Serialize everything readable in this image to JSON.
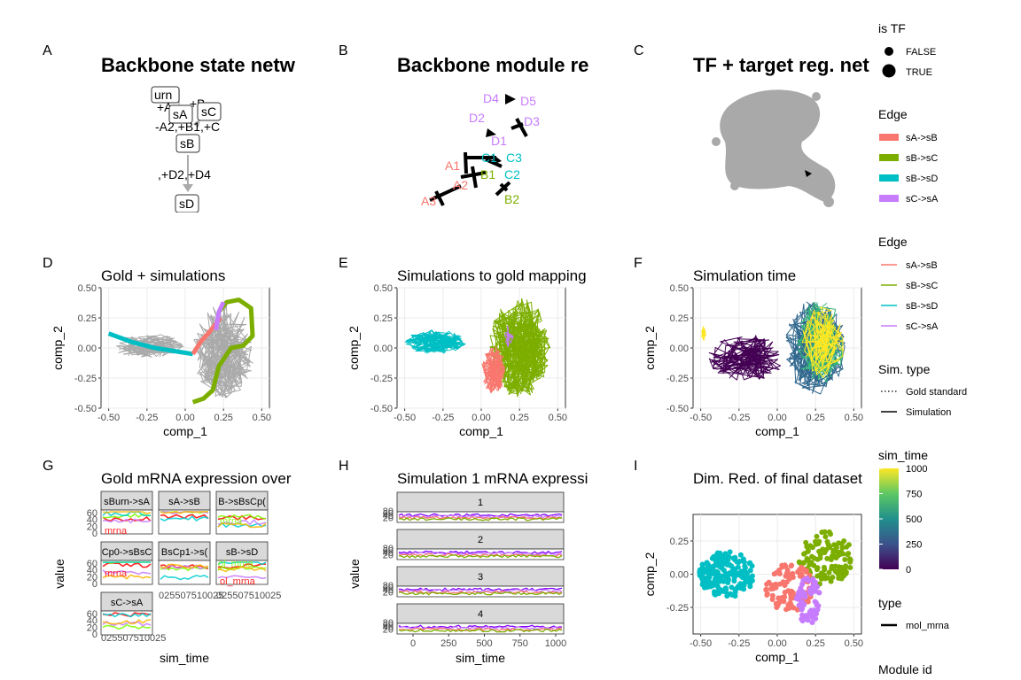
{
  "panels": {
    "A": {
      "tag": "A",
      "title": "Backbone state netw"
    },
    "B": {
      "tag": "B",
      "title": "Backbone module re"
    },
    "C": {
      "tag": "C",
      "title": "TF + target reg. net"
    },
    "D": {
      "tag": "D",
      "title": "Gold + simulations"
    },
    "E": {
      "tag": "E",
      "title": "Simulations to gold mapping"
    },
    "F": {
      "tag": "F",
      "title": "Simulation time"
    },
    "G": {
      "tag": "G",
      "title": "Gold mRNA expression over"
    },
    "H": {
      "tag": "H",
      "title": "Simulation 1 mRNA expressi"
    },
    "I": {
      "tag": "I",
      "title": "Dim. Red. of final dataset"
    }
  },
  "state_network": {
    "nodes": [
      "urn",
      "sA",
      "sC",
      "sB",
      "sD"
    ],
    "edge_labels": [
      "+A",
      "+B",
      "-A2,+B1,+C",
      ",+D2,+D4"
    ]
  },
  "module_network": {
    "nodes": [
      "D4",
      "D5",
      "D2",
      "D3",
      "D1",
      "A1",
      "C1",
      "C3",
      "B1",
      "C2",
      "A2",
      "A3",
      "B2"
    ]
  },
  "facets_G": [
    "sBurn->sA",
    "sA->sB",
    "B->sBsCp(",
    "Cp0->sBsC",
    "BsCp1->s(",
    "sB->sD",
    "sC->sA"
  ],
  "facet_G_labels": [
    "mrna",
    "mrna",
    "mrna",
    "ol_mrna",
    "ol_mrna"
  ],
  "facets_H": [
    "1",
    "2",
    "3",
    "4"
  ],
  "colors": {
    "sA_sB": "#F8766D",
    "sB_sC": "#7CAE00",
    "sB_sD": "#00BFC4",
    "sC_sA": "#C77CFF",
    "gold": "#aaaaaa"
  },
  "legends": {
    "is_tf": {
      "title": "is TF",
      "items": [
        "FALSE",
        "TRUE"
      ]
    },
    "edge_fill": {
      "title": "Edge",
      "items": [
        "sA->sB",
        "sB->sC",
        "sB->sD",
        "sC->sA"
      ]
    },
    "edge_line": {
      "title": "Edge",
      "items": [
        "sA->sB",
        "sB->sC",
        "sB->sD",
        "sC->sA"
      ]
    },
    "sim_type": {
      "title": "Sim. type",
      "items": [
        "Gold standard",
        "Simulation"
      ]
    },
    "sim_time": {
      "title": "sim_time",
      "ticks": [
        "1000",
        "750",
        "500",
        "250",
        "0"
      ],
      "range": [
        0,
        1000
      ]
    },
    "type": {
      "title": "type",
      "items": [
        "mol_mrna"
      ]
    },
    "module_id": {
      "title": "Module id"
    }
  },
  "chart_data": [
    {
      "id": "D",
      "type": "line",
      "title": "Gold + simulations",
      "xlabel": "comp_1",
      "ylabel": "comp_2",
      "xlim": [
        -0.55,
        0.55
      ],
      "ylim": [
        -0.5,
        0.5
      ],
      "xticks": [
        "-0.50",
        "-0.25",
        "0.00",
        "0.25",
        "0.50"
      ],
      "yticks": [
        "0.50",
        "0.25",
        "0.00",
        "-0.25",
        "-0.50"
      ],
      "series": [
        {
          "name": "sB->sD",
          "x": [
            -0.5,
            -0.35,
            -0.2,
            -0.05,
            0.05
          ],
          "y": [
            0.12,
            0.05,
            0.0,
            -0.03,
            -0.05
          ]
        },
        {
          "name": "sA->sB",
          "x": [
            0.05,
            0.1,
            0.15,
            0.2,
            0.23
          ],
          "y": [
            -0.05,
            0.05,
            0.12,
            0.2,
            0.25
          ]
        },
        {
          "name": "sB->sC",
          "x": [
            0.22,
            0.27,
            0.35,
            0.43,
            0.44,
            0.38,
            0.3,
            0.22,
            0.18,
            0.12,
            0.05
          ],
          "y": [
            0.3,
            0.38,
            0.4,
            0.33,
            0.1,
            0.02,
            0.0,
            -0.15,
            -0.35,
            -0.42,
            -0.45
          ]
        },
        {
          "name": "sC->sA",
          "x": [
            0.2,
            0.22,
            0.25
          ],
          "y": [
            0.15,
            0.3,
            0.38
          ]
        }
      ]
    },
    {
      "id": "E",
      "type": "line",
      "title": "Simulations to gold mapping",
      "xlabel": "comp_1",
      "ylabel": "comp_2",
      "xlim": [
        -0.55,
        0.55
      ],
      "ylim": [
        -0.5,
        0.5
      ],
      "xticks": [
        "-0.50",
        "-0.25",
        "0.00",
        "0.25",
        "0.50"
      ],
      "yticks": [
        "0.50",
        "0.25",
        "0.00",
        "-0.25",
        "-0.50"
      ]
    },
    {
      "id": "F",
      "type": "line",
      "title": "Simulation time",
      "xlabel": "comp_1",
      "ylabel": "comp_2",
      "xlim": [
        -0.55,
        0.55
      ],
      "ylim": [
        -0.5,
        0.5
      ],
      "xticks": [
        "-0.50",
        "-0.25",
        "0.00",
        "0.25",
        "0.50"
      ],
      "yticks": [
        "0.50",
        "0.25",
        "0.00",
        "-0.25",
        "-0.50"
      ]
    },
    {
      "id": "G",
      "type": "line",
      "title": "Gold mRNA expression over",
      "xlabel": "sim_time",
      "ylabel": "value",
      "yticks": [
        "60",
        "40",
        "20",
        "0"
      ],
      "xticks": [
        "025",
        "50",
        "75",
        "100",
        "125"
      ],
      "xtick_row": "025507510025"
    },
    {
      "id": "H",
      "type": "line",
      "title": "Simulation 1 mRNA expressi",
      "xlabel": "sim_time",
      "ylabel": "value",
      "xticks": [
        "0",
        "250",
        "500",
        "750",
        "1000"
      ],
      "yticks": [
        "80",
        "60",
        "40",
        "20"
      ]
    },
    {
      "id": "I",
      "type": "scatter",
      "title": "Dim. Red. of final dataset",
      "xlabel": "comp_1",
      "ylabel": "comp_2",
      "xlim": [
        -0.55,
        0.55
      ],
      "ylim": [
        -0.45,
        0.45
      ],
      "xticks": [
        "-0.50",
        "-0.25",
        "0.00",
        "0.25",
        "0.50"
      ],
      "yticks": [
        "0.25",
        "0.00",
        "-0.25"
      ]
    }
  ]
}
